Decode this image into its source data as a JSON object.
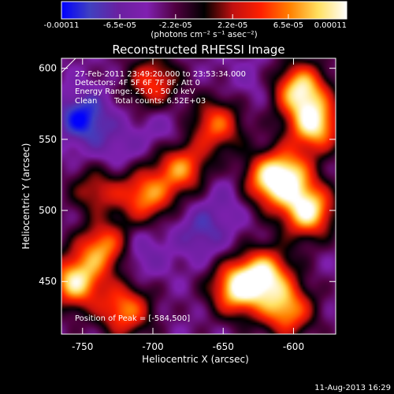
{
  "chart_data": {
    "type": "heatmap",
    "title": "Reconstructed RHESSI Image",
    "xlabel": "Heliocentric X (arcsec)",
    "ylabel": "Heliocentric Y (arcsec)",
    "xlim": [
      -765,
      -570
    ],
    "ylim": [
      413,
      607
    ],
    "x_ticks": [
      -750,
      -700,
      -650,
      -600
    ],
    "y_ticks": [
      450,
      500,
      550,
      600
    ],
    "colorbar": {
      "min": -0.00011,
      "max": 0.00011,
      "tick_values": [
        -0.00011,
        -6.5e-05,
        -2.2e-05,
        2.2e-05,
        6.5e-05,
        0.00011
      ],
      "tick_labels": [
        "-0.00011",
        "-6.5e-05",
        "-2.2e-05",
        "2.2e-05",
        "6.5e-05",
        "0.00011"
      ],
      "units": "(photons cm⁻² s⁻¹ asec⁻²)",
      "colors": [
        "#0000ff",
        "#4040c0",
        "#6a20a0",
        "#8020b0",
        "#500040",
        "#000000",
        "#c01010",
        "#ff2000",
        "#ff8000",
        "#ffe060",
        "#ffffff"
      ]
    },
    "annotations": {
      "time": "27-Feb-2011 23:49:20.000 to 23:53:34.000",
      "detectors": "Detectors: 4F 5F 6F 7F 8F, Att 0",
      "energy": "Energy Range: 25.0 - 50.0 keV",
      "algorithm": "Clean",
      "counts": "Total counts: 6.52E+03",
      "peak": "Position of Peak = [-584,500]"
    },
    "hotspots": [
      {
        "x": -595,
        "y": 585,
        "value": 0.0001
      },
      {
        "x": -585,
        "y": 560,
        "value": 0.0001
      },
      {
        "x": -590,
        "y": 500,
        "value": 0.00011
      },
      {
        "x": -605,
        "y": 525,
        "value": 8e-05
      },
      {
        "x": -620,
        "y": 455,
        "value": 9e-05
      },
      {
        "x": -640,
        "y": 445,
        "value": 0.0001
      },
      {
        "x": -605,
        "y": 430,
        "value": 8e-05
      },
      {
        "x": -755,
        "y": 450,
        "value": 0.0001
      },
      {
        "x": -735,
        "y": 475,
        "value": 8e-05
      },
      {
        "x": -720,
        "y": 430,
        "value": 7e-05
      },
      {
        "x": -680,
        "y": 530,
        "value": 7e-05
      },
      {
        "x": -705,
        "y": 510,
        "value": 7e-05
      },
      {
        "x": -655,
        "y": 560,
        "value": 6e-05
      },
      {
        "x": -700,
        "y": 590,
        "value": 5e-05
      },
      {
        "x": -740,
        "y": 510,
        "value": 6e-05
      },
      {
        "x": -620,
        "y": 520,
        "value": 6e-05
      },
      {
        "x": -750,
        "y": 565,
        "value": -0.00011
      },
      {
        "x": -740,
        "y": 500,
        "value": -8e-05
      },
      {
        "x": -710,
        "y": 470,
        "value": -7e-05
      },
      {
        "x": -665,
        "y": 485,
        "value": -8e-05
      },
      {
        "x": -645,
        "y": 510,
        "value": -6e-05
      },
      {
        "x": -690,
        "y": 555,
        "value": -6e-05
      },
      {
        "x": -630,
        "y": 590,
        "value": -5e-05
      },
      {
        "x": -725,
        "y": 545,
        "value": -6e-05
      }
    ]
  },
  "footer": {
    "timestamp": "11-Aug-2013 16:29"
  }
}
